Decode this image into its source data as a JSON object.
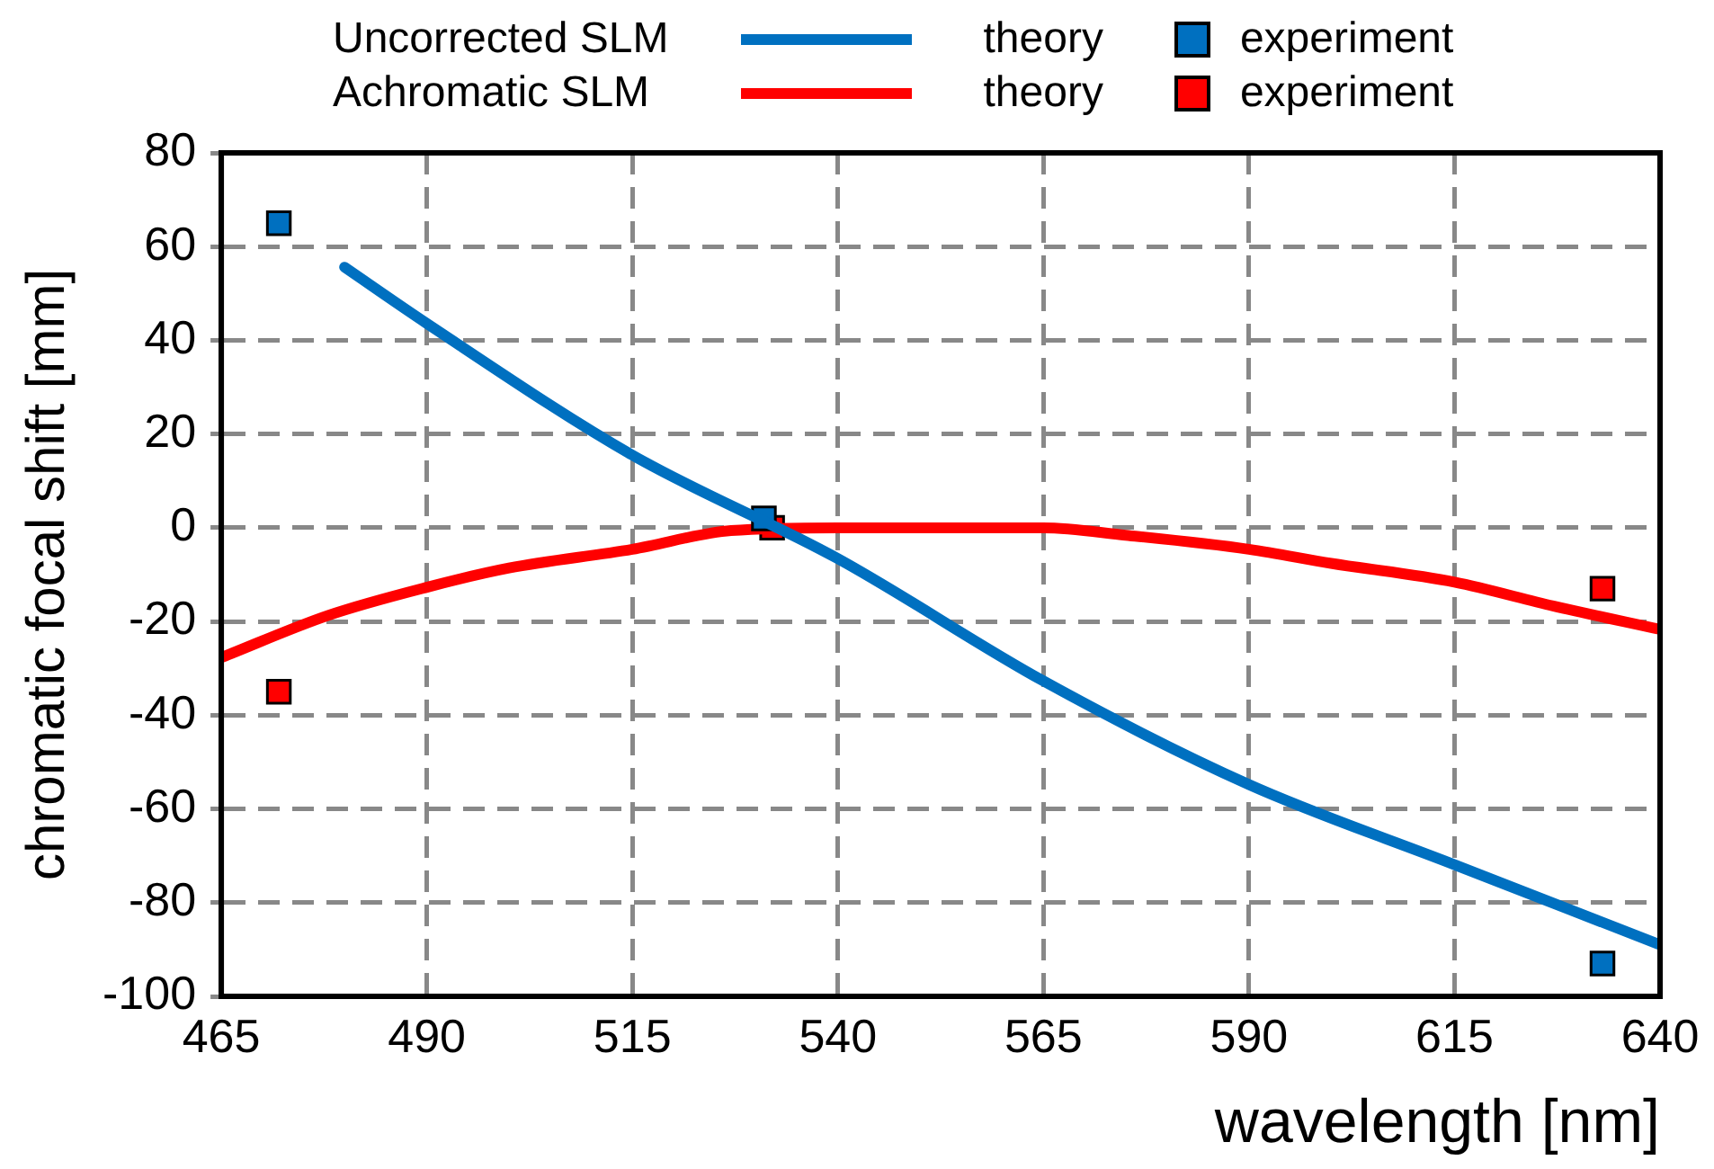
{
  "chart_data": {
    "type": "line",
    "xlabel": "wavelength [nm]",
    "ylabel": "chromatic focal shift [mm]",
    "annotations": [
      "Uncorrected SLM",
      "Achromatic SLM"
    ],
    "xlim": [
      465,
      640
    ],
    "xticks": [
      465,
      490,
      515,
      540,
      565,
      590,
      615,
      640
    ],
    "ylim": [
      -100,
      80
    ],
    "yticks": [
      -100,
      -80,
      -60,
      -40,
      -20,
      0,
      20,
      40,
      60,
      80
    ],
    "grid": true,
    "legend": "top",
    "line_style": "solid",
    "series": [
      {
        "name": "theory",
        "type": "line",
        "marker": "none",
        "color": "#0070c0",
        "x": [
          480,
          490,
          515,
          540,
          565,
          590,
          615,
          640
        ],
        "values": [
          55.6,
          43.6,
          15.5,
          -6.6,
          -32.7,
          -54.8,
          -71.9,
          -89
        ]
      },
      {
        "name": "experiment",
        "type": "scatter",
        "marker": "square",
        "color": "#0070c0",
        "x": [
          472,
          531,
          633
        ],
        "values": [
          65,
          2,
          -93
        ]
      },
      {
        "name": "theory",
        "type": "line",
        "marker": "none",
        "color": "#ff0000",
        "x": [
          465,
          478,
          490,
          500,
          515,
          527,
          540,
          565,
          575,
          590,
          600,
          615,
          627,
          640
        ],
        "values": [
          -27.7,
          -18.7,
          -12.7,
          -8.6,
          -4.6,
          -0.6,
          0,
          0,
          -1.6,
          -4.6,
          -7.6,
          -11.6,
          -16.7,
          -21.7
        ]
      },
      {
        "name": "experiment",
        "type": "scatter",
        "marker": "square",
        "color": "#ff0000",
        "x": [
          472,
          532,
          633
        ],
        "values": [
          -35,
          0,
          -13
        ]
      }
    ]
  }
}
